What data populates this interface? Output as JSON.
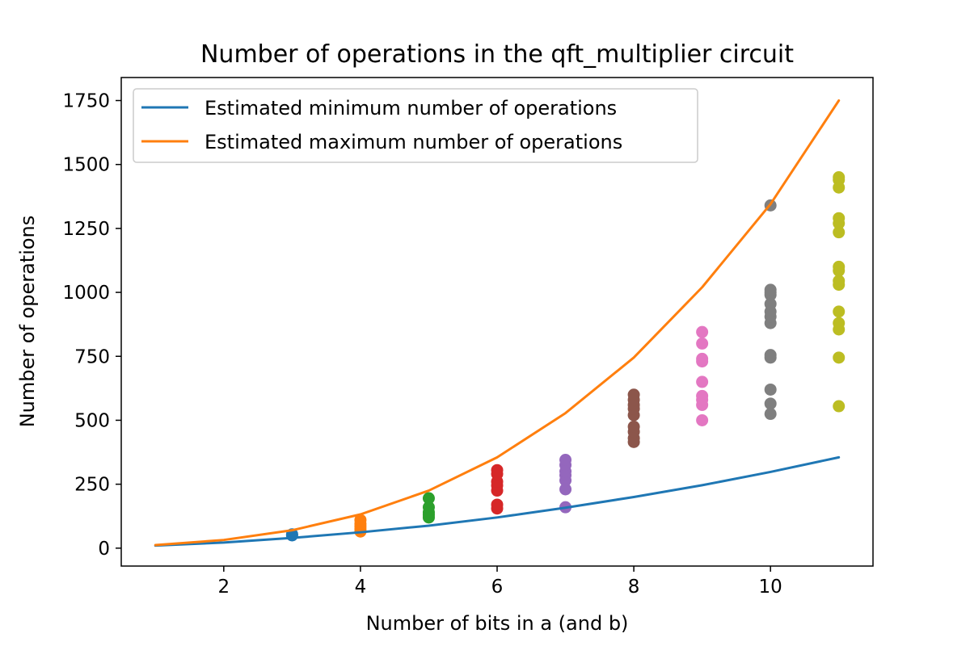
{
  "chart_data": {
    "type": "scatter",
    "title": "Number of operations in the qft_multiplier circuit",
    "xlabel": "Number of bits in a (and b)",
    "ylabel": "Number of operations",
    "xlim": [
      0.5,
      11.5
    ],
    "ylim": [
      -70,
      1840
    ],
    "xticks": [
      2,
      4,
      6,
      8,
      10
    ],
    "yticks": [
      0,
      250,
      500,
      750,
      1000,
      1250,
      1500,
      1750
    ],
    "grid": false,
    "legend_position": "top-left",
    "series": [
      {
        "name": "Estimated minimum number of operations",
        "kind": "line",
        "color": "#1f77b4",
        "x": [
          1,
          2,
          3,
          4,
          5,
          6,
          7,
          8,
          9,
          10,
          11
        ],
        "y": [
          10,
          22,
          40,
          62,
          88,
          120,
          158,
          200,
          246,
          298,
          355
        ]
      },
      {
        "name": "Estimated maximum number of operations",
        "kind": "line",
        "color": "#ff7f0e",
        "x": [
          1,
          2,
          3,
          4,
          5,
          6,
          7,
          8,
          9,
          10,
          11
        ],
        "y": [
          12,
          32,
          70,
          132,
          225,
          355,
          528,
          745,
          1020,
          1345,
          1750
        ]
      }
    ],
    "points": [
      {
        "x": 3,
        "color": "#1f77b4",
        "y": [
          50,
          54
        ]
      },
      {
        "x": 4,
        "color": "#ff7f0e",
        "y": [
          65,
          75,
          85,
          95,
          110
        ]
      },
      {
        "x": 5,
        "color": "#2ca02c",
        "y": [
          120,
          130,
          140,
          160,
          195
        ]
      },
      {
        "x": 6,
        "color": "#d62728",
        "y": [
          155,
          170,
          225,
          245,
          260,
          290,
          305
        ]
      },
      {
        "x": 7,
        "color": "#9467bd",
        "y": [
          160,
          230,
          265,
          285,
          300,
          325,
          345
        ]
      },
      {
        "x": 8,
        "color": "#8c564b",
        "y": [
          415,
          430,
          455,
          475,
          520,
          545,
          560,
          580,
          600
        ]
      },
      {
        "x": 9,
        "color": "#e377c2",
        "y": [
          500,
          560,
          580,
          595,
          650,
          730,
          740,
          800,
          845
        ]
      },
      {
        "x": 10,
        "color": "#7f7f7f",
        "y": [
          525,
          565,
          620,
          745,
          755,
          880,
          905,
          925,
          955,
          990,
          1000,
          1010,
          1340
        ]
      },
      {
        "x": 11,
        "color": "#bcbd22",
        "y": [
          555,
          745,
          855,
          880,
          925,
          1030,
          1045,
          1085,
          1100,
          1235,
          1270,
          1290,
          1410,
          1440,
          1450
        ]
      }
    ]
  }
}
